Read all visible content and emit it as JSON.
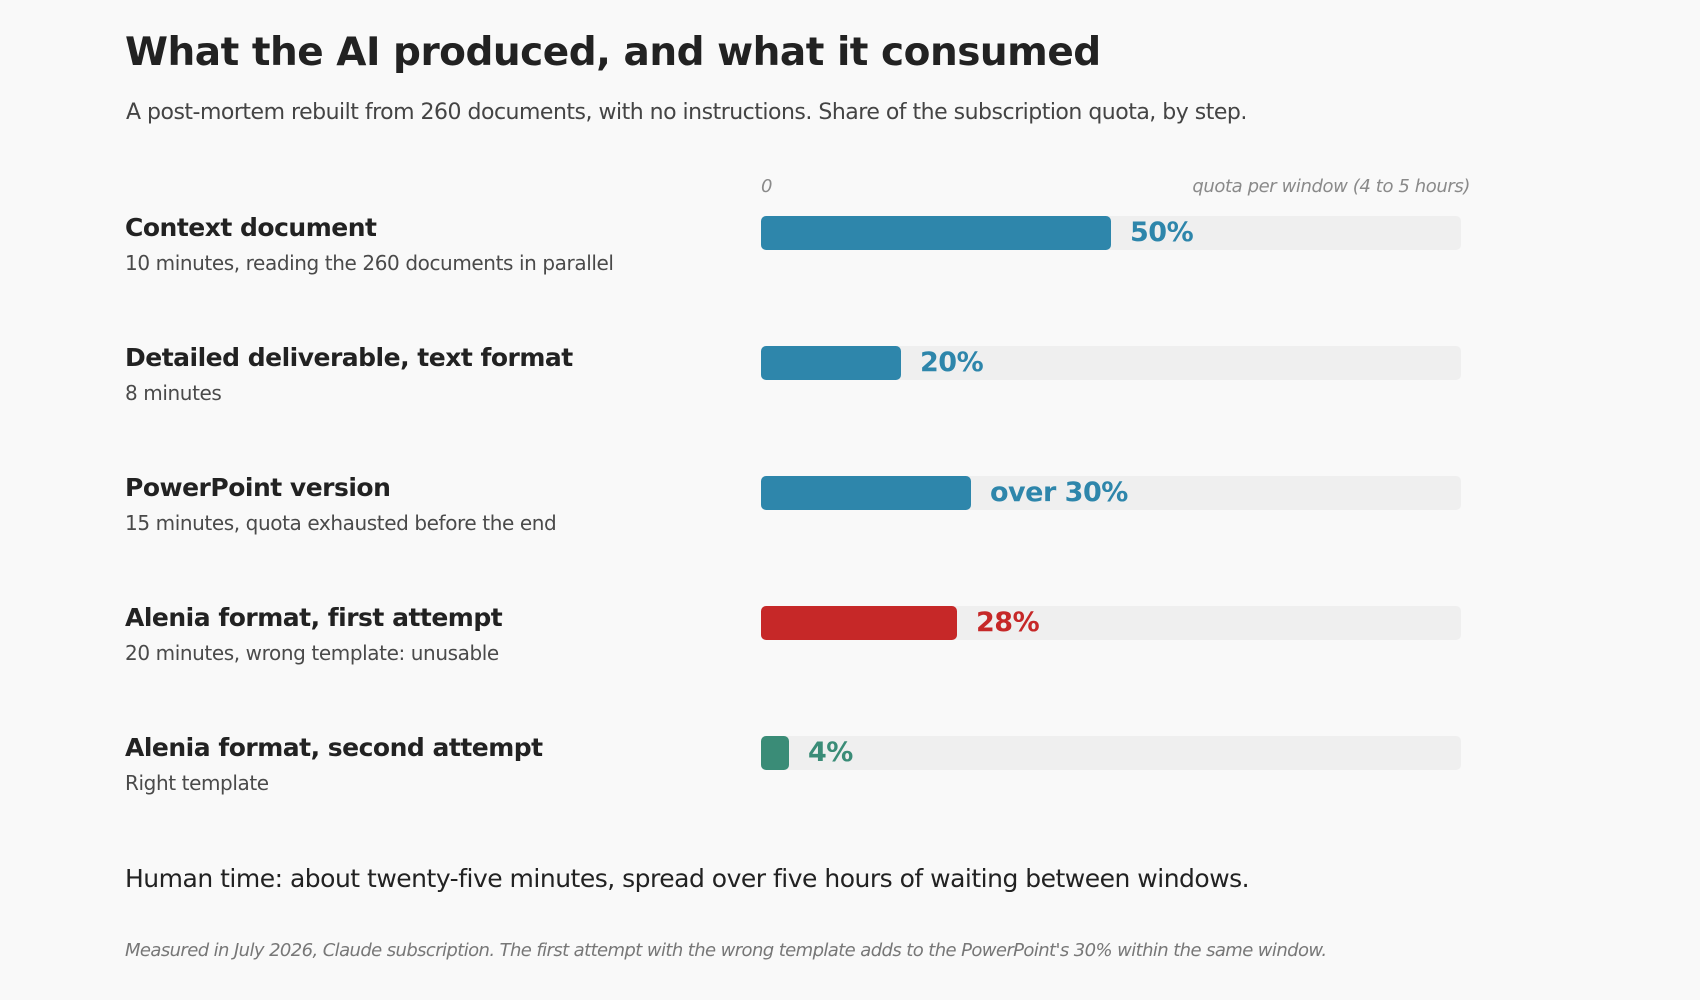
{
  "header": {
    "title": "What the AI produced, and what it consumed",
    "subtitle": "A post-mortem rebuilt from 260 documents, with no instructions. Share of the subscription quota, by step."
  },
  "chart_data": {
    "type": "bar",
    "orientation": "horizontal",
    "xlim": [
      0,
      100
    ],
    "unit": "%",
    "axis_zero_label": "0",
    "axis_caption": "quota per window (4 to 5 hours)",
    "grid": false,
    "legend": "none",
    "rows": [
      {
        "label": "Context document",
        "detail": "10 minutes, reading the 260 documents in parallel",
        "value": 50,
        "value_label": "50%",
        "color": "#2e86ab"
      },
      {
        "label": "Detailed deliverable, text format",
        "detail": "8 minutes",
        "value": 20,
        "value_label": "20%",
        "color": "#2e86ab"
      },
      {
        "label": "PowerPoint version",
        "detail": "15 minutes, quota exhausted before the end",
        "value": 30,
        "value_label": "over 30%",
        "color": "#2e86ab"
      },
      {
        "label": "Alenia format, first attempt",
        "detail": "20 minutes, wrong template: unusable",
        "value": 28,
        "value_label": "28%",
        "color": "#c62828"
      },
      {
        "label": "Alenia format, second attempt",
        "detail": "Right template",
        "value": 4,
        "value_label": "4%",
        "color": "#3a8c77"
      }
    ]
  },
  "summary": {
    "human_time": "Human time: about twenty-five minutes, spread over five hours of waiting between windows.",
    "footnote": "Measured in July 2026, Claude subscription. The first attempt with the wrong template adds to the PowerPoint's 30% within the same window."
  },
  "colors": {
    "background": "#f9f9f9",
    "track": "#efefef",
    "primary": "#2e86ab",
    "failure": "#c62828",
    "success": "#3a8c77"
  }
}
